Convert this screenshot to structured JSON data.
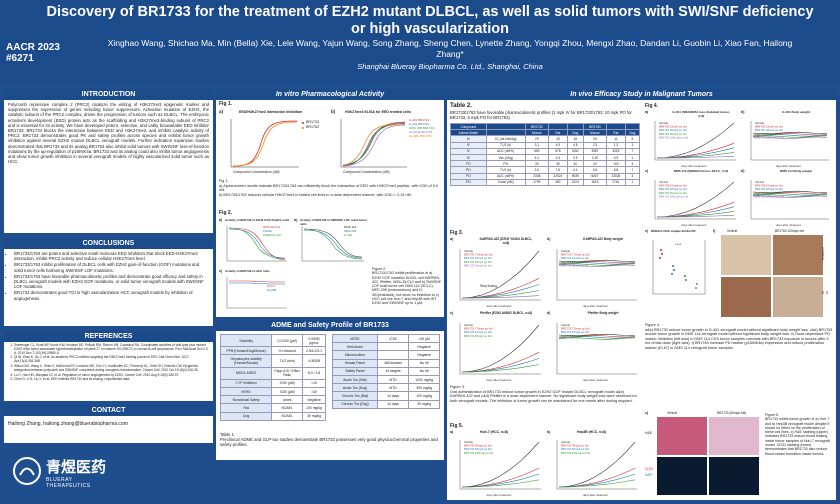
{
  "header": {
    "title": "Discovery of BR1733 for the treatment of EZH2 mutant DLBCL, as well as solid tumors with SWI/SNF deficiency or high vascularization",
    "authors": "Xinghao Wang, Shichao Ma, Min (Bella) Xie, Lele Wang, Yajun Wang, Song Zhang, Sheng Chen, Lynette Zhang, Yongqi Zhou, Mengxi Zhao, Dandan Li, Guobin Li, Xiao Fan, Hailong Zhang*",
    "affiliation": "Shanghai Blueray Biopharma Co. Ltd., Shanghai, China",
    "conf": "AACR 2023",
    "abstract_no": "#6271"
  },
  "intro": {
    "heading": "INTRODUCTION",
    "text": "Polycomb repressive complex 2 (PRC2) catalyze the writing of H3K27me3 epigenetic marker and suppresses the expression of genes including tumor suppressors. Activation mutation of EZH2, the catalytic subunit of the PRC2 complex, drives the progression of tumors such as DLBCL. The embryonic ectoderm development (EED) protein acts as the scaffolding and H3K27me3-binding subunit of PRC2 and is essential for its activity. We have developed potent, selective, and orally bioavailable EED inhibitor BR1733. BR1733 blocks the interaction between EED and H3K27me3, and inhibits catalytic activity of PRC2. BR1733 demonstrates good PK and safety profiles across species and exhibit tumor growth inhibition against several EZH2 mutant DLBCL xenograft models. Further indication expansion studies demonstrated that BR1733 and its analog BR1763 also inhibit solid tumors with SWI/SNF loss-of-function mutations by the up-regulation of p16INK4a. BR1733 and its analog could also inhibit tumor angiogenesis and show tumor growth inhibition in several xenograft models of highly vascularized solid tumor such as HCC."
  },
  "conclusions": {
    "heading": "CONCLUSIONS",
    "items": [
      "BR1733/1763 are potent and selective small molecule EED inhibitors that block EED-H3K27me3 interaction, inhibit PRC2 activity and reduce cellular H3K27me3 level.",
      "BR1733/1763 inhibit proliferation of DLBCL cells with EZH2 gain-of-function (GOF) mutations and solid tumor cells harboring SWI/SNF LOF mutations.",
      "BR1733/1763 have favorable pharmacokinetic profiles and demonstrate good efficacy and safety in DLBCL xenograft models with EZH2 GOF mutations, or solid tumor xenograft models with SWI/SNF LOF mutations.",
      "BR1733 demonstrates good TGI in high vascularization HCC xenograft models by inhibition of angiogenesis."
    ]
  },
  "references": {
    "heading": "REFERENCES",
    "items": [
      "Sneeringer CJ, Scott MP, Kuntz KW, Knutson SK, Pollock RM, Richon VM, Copeland RA. Coordinated activities of wild-type plus mutant EZH2 drive tumor-associated hypertrimethylation of lysine 27 on histone H3 (H3K27) in human B-cell lymphomas. Proc Natl Acad Sci U S A. 2010 Dec 7;107(49):20980-5.",
      "Qi W, Zhao K, Gu J, et al. An allosteric PRC2 inhibitor targeting the H3K27me3 binding pocket of EED. Nat Chem Biol. 2017 Apr;13(4):381-388.",
      "Wilson BG, Wang X, Shen X, McKenna ES, Lemieux ME, Cho YJ, Koellhoffer EC, Pomeroy SL, Orkin SH, Roberts CW. Epigenetic antagonism between polycomb and SWI/SNF complexes during oncogenic transformation. Cancer Cell. 2010 Oct 19;18(4):316-28.",
      "Lu C, Han HD, Mangala LS, et al. Regulation of tumor angiogenesis by EZH2. Cancer Cell. 2010 Aug 9;18(2):185-97.",
      "Chen D, Li N, Liu X, et al. EED inhibitor BR1733 and its analog. Unpublished data."
    ]
  },
  "contact": {
    "heading": "CONTACT",
    "text": "Hailong Zhang,  hailong.zhang@bluerabiopharma.com"
  },
  "logo": {
    "cn": "青煜医药",
    "en": "BLUERAY THERAPEUTICS"
  },
  "invitro": {
    "heading": "In vitro Pharmacological Activity",
    "fig1_label": "Fig 1.",
    "fig1a_title": "EED/H3K27me3 Interaction Inhibition",
    "fig1b_title": "H3K27me3 ELISA for EED treated cells",
    "fig1_legend_a": [
      "BR1733",
      "BR1763"
    ],
    "fig1_legend_b": [
      "G-401 BR1733",
      "G-401 BR1763",
      "WSU (DB BR1733)",
      "HepG2B BR1763",
      "Hep3B (BR1763)"
    ],
    "fig1_xlabel": "Compound Concentration (nM)",
    "fig1_caption": "Fig 1.\na) Alpha-screen results indicate BR1733/1763 can efficiently block the interaction of EED with H3K27me3 peptide, with IC50 of 5.9 nM.\nb) BR1733/1763 reduces cellular H3K27me3 in tested cell lines in a dose dependent manner, with IC50 = 2-15 nM.",
    "fig2_label": "Fig 2.",
    "fig2a_title": "Activity of BR1733 in EZH2 GOF DLBCL cells",
    "fig2a_legend": [
      "WSU-DLCL2",
      "Pfeiffer",
      "KARPAS-422"
    ],
    "fig2b_title": "Activity of BR1733 in SWI/SNF LOF solid tumor cells",
    "fig2b_legend": [
      "DMS 114",
      "MFE-296",
      "G-401"
    ],
    "fig2c_title": "Activity of BR1733 in HCC cells",
    "fig2c_legend": [
      "Huh-7",
      "Hep3B"
    ],
    "fig2_xlabel": "Compound Concentration (nM)",
    "fig2_caption": "Figure 2.\nBR1733/1763 inhibit proliferation of a) EZH2 GOF mutation DLBCL cell KARPAS-422, Pfeiffer, WSU-DLCL2 and b) SWI/SNF LOF solid tumor cell DMS 114 (SCLC), MFE-296 (endometrium) and G-401(rhabdoid), but show no inhibition to c) HCC cell line Huh-7 and Hep3B with WT EZH2 and SWI/SNF up to 1 µM."
  },
  "adme": {
    "heading": "ADME and Safety Profile of BR1733",
    "left_rows": [
      [
        "Solubility",
        "0.01/50 (µM)",
        "0.05/50 µg/mL"
      ],
      [
        "PPB (Human/Dog/Mouse)",
        "% Unbound",
        "2.5/4.2/3.1"
      ],
      [
        "Hepatocytes stability (Human/Mouse)",
        "T1/2 (min)",
        ">180/95"
      ],
      [
        "MDCK-MDR1",
        "Papp A-B / Efflux Ratio",
        "8.0 / 1.8"
      ],
      [
        "CYP inhibition",
        "IC50 (µM)",
        ">10"
      ],
      [
        "hERG",
        "IC50 (µM)",
        ">30"
      ],
      [
        "Nonclinical Safety",
        "Ames",
        "Negative"
      ],
      [
        "Rat",
        "NOAEL",
        "100 mg/kg"
      ],
      [
        "Dog",
        "NOAEL",
        "30 mg/kg"
      ]
    ],
    "right_rows": [
      [
        "hERG",
        "IC50",
        ">30 µM"
      ],
      [
        "Mini Ames",
        "",
        "Negative"
      ],
      [
        "Micronucleus",
        "",
        "Negative"
      ],
      [
        "Kinase Panel",
        "468 kinases",
        "No hit"
      ],
      [
        "Safety Panel",
        "44 targets",
        "No hit"
      ],
      [
        "Acute Tox (Rat)",
        "MTD",
        "1000 mg/kg"
      ],
      [
        "Acute Tox (Dog)",
        "MTD",
        "300 mg/kg"
      ],
      [
        "Chronic Tox (Rat)",
        "14 days",
        "100 mg/kg"
      ],
      [
        "Chronic Tox (Dog)",
        "14 days",
        "30 mg/kg"
      ]
    ],
    "caption": "Table 1.\nPreclinical ADME and GLP-tox studies demonstrate BR1733 possesses very good physicochemical properties and safety profiles."
  },
  "invivo": {
    "heading": "In vivo Efficacy Study in Malignant Tumors",
    "table2_label": "Table 2.",
    "table2_caption": "BR1733/1763 have favorable pharmacokinetic profiles (1 mpk IV for BR1733/1763; 10 mpk PO for BR1733, 5 mpk PO for BR1763).",
    "table2_header": [
      "Compound",
      "",
      "BR1733",
      "",
      "",
      "BR1763",
      "",
      ""
    ],
    "table2_sub": [
      "Animal Model",
      "",
      "Mouse",
      "Rat",
      "Dog",
      "Mouse",
      "Rat",
      "Dog"
    ],
    "table2_rows": [
      [
        "IV",
        "CL (mL/min/kg)",
        "29",
        "15",
        "16",
        "29",
        "11",
        "5"
      ],
      [
        "IV",
        "T1/2 (h)",
        "3.1",
        "4.9",
        "4.8",
        "2.3",
        "1.3",
        "3"
      ],
      [
        "IV",
        "AUC (nM*h)",
        "650",
        "578",
        "2252",
        "3587",
        "3229",
        "7"
      ],
      [
        "IV",
        "Vss (L/kg)",
        "5.1",
        "3.3",
        "3.5",
        "2.49",
        "0.9",
        "1"
      ],
      [
        "PO",
        "F%",
        "39",
        "39",
        "40",
        "24",
        "100",
        "4"
      ],
      [
        "PO",
        "T1/2 (h)",
        "2.6",
        "7.6",
        "4.4",
        "3.6",
        "6.8",
        "7"
      ],
      [
        "PO",
        "AUC (nM*h)",
        "2308",
        "22524",
        "9039",
        "6607",
        "23026",
        "3"
      ],
      [
        "PO",
        "Cmax (nM)",
        "1799",
        "480",
        "2224",
        "1613",
        "2761",
        "1"
      ]
    ],
    "fig3_label": "Fig 3.",
    "fig3a_title": "KARPAS-422 (EZH2 Y641N DLBCL, n=8)",
    "fig3b_title": "KARPAS-422 Body weight",
    "fig3c_title": "Pfeiffer (EZH2 A682G DLBCL, n=8)",
    "fig3d_title": "Pfeiffer Body weight",
    "fig3_stop": "Stop dosing",
    "fig3_legend": [
      "Vehicle",
      "BR1733 7.5mpk po bid",
      "BR1733 15mpk po bid",
      "BR1733 30mpk po bid",
      "BR1733 60mpk po bid"
    ],
    "fig3_legend_c": [
      "Vehicle",
      "BR1733 7.5mpk po bid",
      "BR1733 15mpk po bid",
      "BR1733 30mpk po bid"
    ],
    "fig3_xlabel": "days after treatment",
    "fig3_caption": "Figure 3.\nOral administration of BR1733 reduce tumor growth in EZH2 GOF mutant DLBCL xenograft model a&b) KARPAS-422 and c&d) Pfeiffer in a dose-dependent manner. No significant body weight loss were observed for both xenograft models. The inhibition of tumor growth can be maintained for one month after dosing stopped.",
    "fig4_label": "Fig 4.",
    "fig4a_title": "G-401 (SMARCB1 loss rhabdoid tumor, n=8)",
    "fig4b_title": "G-401 Body weight",
    "fig4c_title": "DMS 114 (SMARCA4 loss SCLC, n=8)",
    "fig4d_title": "DMS 114 Body weight",
    "fig4e_title": "DMS114 CDX sample ELISA-PK",
    "fig4_legend": [
      "Vehicle",
      "BR1763 15mpk po bid",
      "BR1763 30mpk po bid",
      "BR1763 60mpk po bid",
      "BR1763 100mpk po bid"
    ],
    "fig4_xlabel": "days after treatment",
    "fig4f_vehicle": "Vehicle",
    "fig4f_treated": "BR1763 100mpk bid",
    "fig4f_marker1": "p16INK4a",
    "fig4f_marker2": "Ki-67",
    "fig4_caption": "Figure 4.\na&b) BR1733 reduce tumor growth in G-401 xenograft model without significant body weight loss. c&d) BR1763 reduce tumor growth in DMS 114 xenograft model without significant body weight loss. e) Dose-dependent PD marker inhibition (left axis) in DMS 114 CDX tumor samples correlate with BR1733 exposure in tumors after 3 hrs of last dose (right axis). f) BR1763 increase PD marker (p16INK4a) expression and reduce proliferation marker (Ki-67) in DMS 114 xenograft tumor samples.",
    "fig5_label": "Fig 5.",
    "fig5a_title": "Huh-7 (HCC, n=8)",
    "fig5b_title": "Hep3B (HCC, n=8)",
    "fig5_legend": [
      "Vehicle",
      "BR1733 30mpk po bid",
      "BR1733 60mpk po bid",
      "BR1733 100mpk po bid"
    ],
    "fig5_xlabel": "days after treatment",
    "fig5c_vehicle": "Vehicle",
    "fig5c_treated": "BR1733 (60mpk bid)",
    "fig5c_he": "H&E",
    "fig5c_cd31": "CD31",
    "fig5c_dapi": "DAPI",
    "fig5_caption": "Figure 5.\nBR1733 inhibit tumor growth of a) Huh-7 and b) Hep3B xenograft model despite it shows no effect on the proliferation of these cell lines. c) H&E staining (upper) indicates BR1733 reduce blood leaking inside tumor samples of Huh-7 xenograft model. CD31 staining (lower) demonstrates that BR1733 also reduce blood vessel formation inside tumors."
  },
  "chart_data": [
    {
      "type": "line",
      "title": "EED/H3K27me3 Interaction Inhibition",
      "xlabel": "Compound Concentration (nM)",
      "ylabel": "% Inhibition",
      "series": [
        {
          "name": "BR1733"
        },
        {
          "name": "BR1763"
        }
      ]
    },
    {
      "type": "line",
      "title": "H3K27me3 ELISA for EED treated cells",
      "xlabel": "Compound Concentration (nM)",
      "ylabel": "% Inhibition"
    },
    {
      "type": "line",
      "title": "KARPAS-422 (EZH2 Y641N DLBCL, n=8)",
      "xlabel": "days after treatment",
      "ylabel": "Tumor Volume (mm3)"
    },
    {
      "type": "line",
      "title": "G-401 (SMARCB1 loss rhabdoid tumor, n=8)",
      "xlabel": "days after treatment",
      "ylabel": "Tumor Volume (mm3)"
    },
    {
      "type": "line",
      "title": "Huh-7 (HCC, n=8)",
      "xlabel": "days after treatment",
      "ylabel": "Tumor Volume (mm3)"
    }
  ],
  "colors": {
    "navy": "#1c4b8c",
    "red": "#d62728",
    "orange": "#ff7f0e",
    "green": "#2ca02c",
    "purple": "#9467bd",
    "blue": "#1f77b4"
  }
}
